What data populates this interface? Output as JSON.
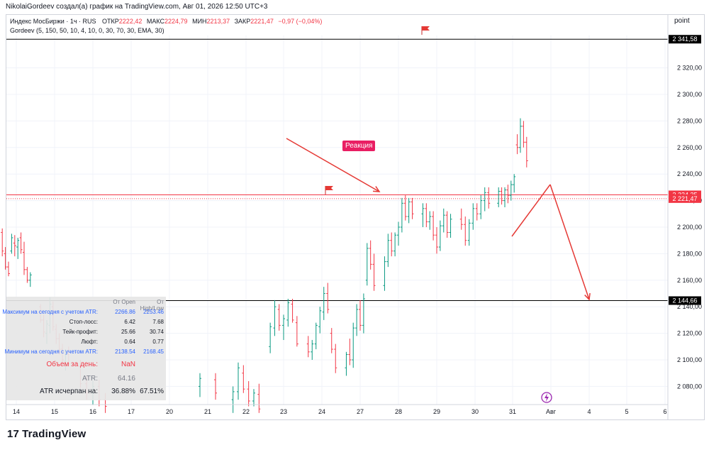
{
  "header": {
    "caption": "NikolaiGordeev создал(а) график на TradingView.com, Авг 01, 2026 12:50 UTC+3",
    "symbol": "Индекс МосБиржи · 1ч · RUS",
    "ohlc": [
      {
        "k": "ОТКР",
        "v": "2222,42"
      },
      {
        "k": "МАКС",
        "v": "2224,79"
      },
      {
        "k": "МИН",
        "v": "2213,37"
      },
      {
        "k": "ЗАКР",
        "v": "2221,47"
      }
    ],
    "change": "−0,97 (−0,04%)",
    "indicator": "Gordeev (5, 150, 50, 10, 4, 10, 0, 30, 70, 30, EMA, 30)",
    "mode_button": "point"
  },
  "annotation": {
    "label": "Реакция",
    "color": "#e91e63"
  },
  "stats_table": {
    "col1_header": "От Open",
    "col2_header": "От High/Low",
    "rows": [
      {
        "label": "Максимум на сегодня с учетом ATR:",
        "v1": "2266.86",
        "v2": "2253.46",
        "style": "blue"
      },
      {
        "label": "Стоп-лосс:",
        "v1": "6.42",
        "v2": "7.68",
        "style": "normal"
      },
      {
        "label": "Тейк-профит:",
        "v1": "25.66",
        "v2": "30.74",
        "style": "normal"
      },
      {
        "label": "Люфт:",
        "v1": "0.64",
        "v2": "0.77",
        "style": "normal"
      },
      {
        "label": "Минимум на сегодня с учетом ATR:",
        "v1": "2138.54",
        "v2": "2168.45",
        "style": "blue"
      }
    ],
    "volume_label": "Объем за день:",
    "volume_value": "NaN",
    "atr_label": "ATR:",
    "atr_value": "64.16",
    "atr_used_label": "ATR исчерпан на:",
    "atr_used_v1": "36.88%",
    "atr_used_v2": "67.51%"
  },
  "brand": "TradingView",
  "chart_data": {
    "type": "ohlc",
    "y_ticks": [
      2080,
      2100,
      2120,
      2140,
      2160,
      2180,
      2200,
      2220,
      2240,
      2260,
      2280,
      2300,
      2320
    ],
    "y_tick_labels": [
      "2 080,00",
      "2 100,00",
      "2 120,00",
      "2 140,00",
      "2 160,00",
      "2 180,00",
      "2 200,00",
      "2 220,00",
      "2 240,00",
      "2 260,00",
      "2 280,00",
      "2 300,00",
      "2 320,00"
    ],
    "x_ticks": [
      "14",
      "15",
      "16",
      "17",
      "20",
      "21",
      "22",
      "23",
      "24",
      "27",
      "28",
      "29",
      "30",
      "31",
      "Авг",
      "4",
      "5",
      "6"
    ],
    "up_color": "#089981",
    "down_color": "#f23645",
    "horizontal_lines": [
      {
        "price": 2341.58,
        "label": "2 341,58",
        "color": "#000000"
      },
      {
        "price": 2144.66,
        "label": "2 144,66",
        "color": "#000000"
      },
      {
        "price": 2224.35,
        "label": "2 224,35",
        "color": "#f23645"
      }
    ],
    "last_price": {
      "price": 2221.47,
      "label": "2 221,47",
      "color": "#f23645"
    },
    "bars": [
      [
        2196,
        2199,
        2178,
        2182
      ],
      [
        2180,
        2185,
        2168,
        2170
      ],
      [
        2170,
        2174,
        2163,
        2165
      ],
      [
        2182,
        2195,
        2180,
        2192
      ],
      [
        2188,
        2194,
        2178,
        2186
      ],
      [
        2185,
        2192,
        2176,
        2190
      ],
      [
        2192,
        2196,
        2180,
        2183
      ],
      [
        2181,
        2189,
        2164,
        2168
      ],
      [
        2168,
        2170,
        2158,
        2160
      ],
      [
        2160,
        2166,
        2155,
        2164
      ],
      [
        2140,
        2142,
        2128,
        2130
      ],
      [
        2130,
        2134,
        2117,
        2121
      ],
      [
        2120,
        2130,
        2112,
        2127
      ],
      [
        2126,
        2147,
        2120,
        2142
      ],
      [
        2140,
        2144,
        2122,
        2125
      ],
      [
        2123,
        2127,
        2112,
        2116
      ],
      [
        2116,
        2120,
        2104,
        2108
      ],
      [
        2108,
        2112,
        2096,
        2100
      ],
      [
        2099,
        2108,
        2092,
        2104
      ],
      [
        2104,
        2110,
        2095,
        2097
      ],
      [
        2095,
        2100,
        2079,
        2082
      ],
      [
        2082,
        2088,
        2070,
        2075
      ],
      [
        2075,
        2084,
        2066,
        2080
      ],
      [
        2080,
        2085,
        2065,
        2070
      ],
      [
        2070,
        2075,
        2060,
        2065
      ],
      [
        2080,
        2090,
        2072,
        2086
      ],
      [
        2085,
        2090,
        2070,
        2075
      ],
      [
        2070,
        2080,
        2060,
        2076
      ],
      [
        2076,
        2098,
        2070,
        2094
      ],
      [
        2090,
        2096,
        2075,
        2078
      ],
      [
        2078,
        2084,
        2065,
        2069
      ],
      [
        2069,
        2078,
        2065,
        2075
      ],
      [
        2074,
        2082,
        2060,
        2063
      ],
      [
        2110,
        2128,
        2105,
        2125
      ],
      [
        2124,
        2145,
        2118,
        2140
      ],
      [
        2138,
        2142,
        2122,
        2126
      ],
      [
        2126,
        2134,
        2115,
        2131
      ],
      [
        2130,
        2146,
        2125,
        2143
      ],
      [
        2142,
        2146,
        2128,
        2130
      ],
      [
        2128,
        2133,
        2110,
        2112
      ],
      [
        2112,
        2118,
        2102,
        2106
      ],
      [
        2106,
        2115,
        2100,
        2112
      ],
      [
        2112,
        2128,
        2108,
        2126
      ],
      [
        2125,
        2140,
        2120,
        2137
      ],
      [
        2136,
        2155,
        2130,
        2150
      ],
      [
        2150,
        2158,
        2135,
        2138
      ],
      [
        2120,
        2124,
        2105,
        2108
      ],
      [
        2108,
        2112,
        2090,
        2094
      ],
      [
        2094,
        2106,
        2088,
        2104
      ],
      [
        2104,
        2116,
        2096,
        2100
      ],
      [
        2100,
        2128,
        2094,
        2124
      ],
      [
        2124,
        2142,
        2118,
        2138
      ],
      [
        2138,
        2145,
        2122,
        2126
      ],
      [
        2126,
        2150,
        2120,
        2146
      ],
      [
        2160,
        2188,
        2156,
        2184
      ],
      [
        2184,
        2190,
        2168,
        2172
      ],
      [
        2172,
        2180,
        2152,
        2156
      ],
      [
        2156,
        2178,
        2152,
        2174
      ],
      [
        2174,
        2195,
        2170,
        2190
      ],
      [
        2190,
        2196,
        2178,
        2182
      ],
      [
        2182,
        2196,
        2178,
        2194
      ],
      [
        2194,
        2204,
        2186,
        2200
      ],
      [
        2200,
        2222,
        2196,
        2218
      ],
      [
        2218,
        2224,
        2205,
        2208
      ],
      [
        2208,
        2222,
        2203,
        2219
      ],
      [
        2219,
        2222,
        2206,
        2210
      ],
      [
        2210,
        2218,
        2200,
        2214
      ],
      [
        2214,
        2218,
        2200,
        2204
      ],
      [
        2204,
        2212,
        2198,
        2208
      ],
      [
        2208,
        2212,
        2190,
        2194
      ],
      [
        2194,
        2200,
        2180,
        2185
      ],
      [
        2185,
        2205,
        2182,
        2201
      ],
      [
        2201,
        2214,
        2196,
        2209
      ],
      [
        2209,
        2212,
        2192,
        2196
      ],
      [
        2196,
        2210,
        2192,
        2206
      ],
      [
        2206,
        2214,
        2198,
        2202
      ],
      [
        2202,
        2208,
        2186,
        2190
      ],
      [
        2190,
        2206,
        2186,
        2203
      ],
      [
        2203,
        2218,
        2198,
        2214
      ],
      [
        2214,
        2218,
        2205,
        2210
      ],
      [
        2210,
        2224,
        2206,
        2220
      ],
      [
        2220,
        2230,
        2212,
        2226
      ],
      [
        2226,
        2230,
        2214,
        2218
      ],
      [
        2218,
        2230,
        2215,
        2227
      ],
      [
        2227,
        2230,
        2217,
        2220
      ],
      [
        2220,
        2230,
        2215,
        2228
      ],
      [
        2228,
        2232,
        2218,
        2224
      ],
      [
        2224,
        2235,
        2220,
        2232
      ],
      [
        2232,
        2240,
        2226,
        2238
      ],
      [
        2262,
        2270,
        2255,
        2260
      ],
      [
        2260,
        2282,
        2256,
        2276
      ],
      [
        2276,
        2280,
        2260,
        2264
      ],
      [
        2264,
        2268,
        2245,
        2250
      ],
      [
        2250,
        2256,
        2238,
        2243
      ],
      [
        2243,
        2262,
        2240,
        2258
      ],
      [
        2258,
        2260,
        2236,
        2240
      ],
      [
        2240,
        2246,
        2225,
        2230
      ],
      [
        2230,
        2234,
        2208,
        2212
      ],
      [
        2212,
        2220,
        2196,
        2200
      ],
      [
        2200,
        2210,
        2190,
        2206
      ],
      [
        2206,
        2222,
        2200,
        2216
      ],
      [
        2216,
        2228,
        2210,
        2224
      ],
      [
        2224,
        2230,
        2218,
        2228
      ],
      [
        2228,
        2232,
        2210,
        2214
      ],
      [
        2214,
        2218,
        2202,
        2206
      ],
      [
        2206,
        2228,
        2204,
        2224
      ],
      [
        2222.42,
        2224.79,
        2213.37,
        2221.47
      ]
    ],
    "bar_days": [
      [
        14,
        10
      ],
      [
        15,
        10
      ],
      [
        16,
        5
      ],
      [
        21,
        2
      ],
      [
        22,
        6
      ],
      [
        23,
        7
      ],
      [
        24,
        8
      ],
      [
        27,
        9
      ],
      [
        28,
        9
      ],
      [
        29,
        9
      ],
      [
        30,
        8
      ],
      [
        31,
        10
      ]
    ],
    "drawings": [
      {
        "type": "arrow",
        "from": [
          "Jul 22 17:00",
          2270
        ],
        "to": [
          "Jul 27 11:00",
          2224
        ]
      },
      {
        "type": "arrow",
        "from": [
          "Aug 01 13:00",
          2233
        ],
        "to": [
          "Aug 04 18:00",
          2144
        ]
      },
      {
        "type": "line",
        "from": [
          "Jul 31 12:00",
          2195
        ],
        "to": [
          "Aug 01 13:00",
          2233
        ]
      }
    ]
  }
}
